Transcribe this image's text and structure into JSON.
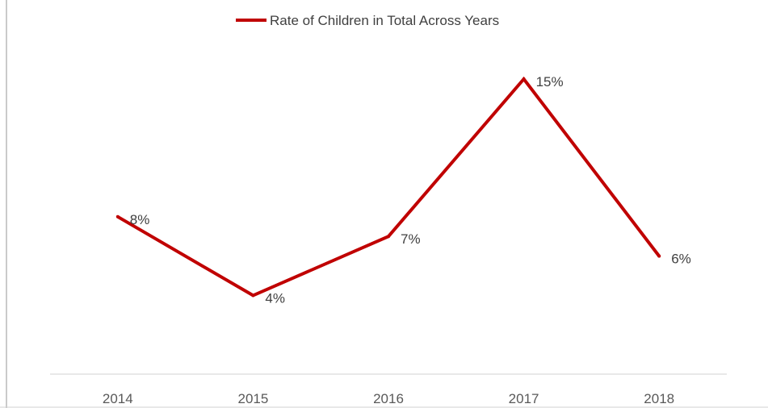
{
  "chart_data": {
    "type": "line",
    "categories": [
      "2014",
      "2015",
      "2016",
      "2017",
      "2018"
    ],
    "series": [
      {
        "name": "Rate of Children in Total Across Years",
        "values": [
          8,
          4,
          7,
          15,
          6
        ],
        "labels": [
          "8%",
          "4%",
          "7%",
          "15%",
          "6%"
        ],
        "color": "#c00000"
      }
    ],
    "ylim": [
      0,
      17.5
    ],
    "grid": false,
    "legend_position": "top-center"
  }
}
